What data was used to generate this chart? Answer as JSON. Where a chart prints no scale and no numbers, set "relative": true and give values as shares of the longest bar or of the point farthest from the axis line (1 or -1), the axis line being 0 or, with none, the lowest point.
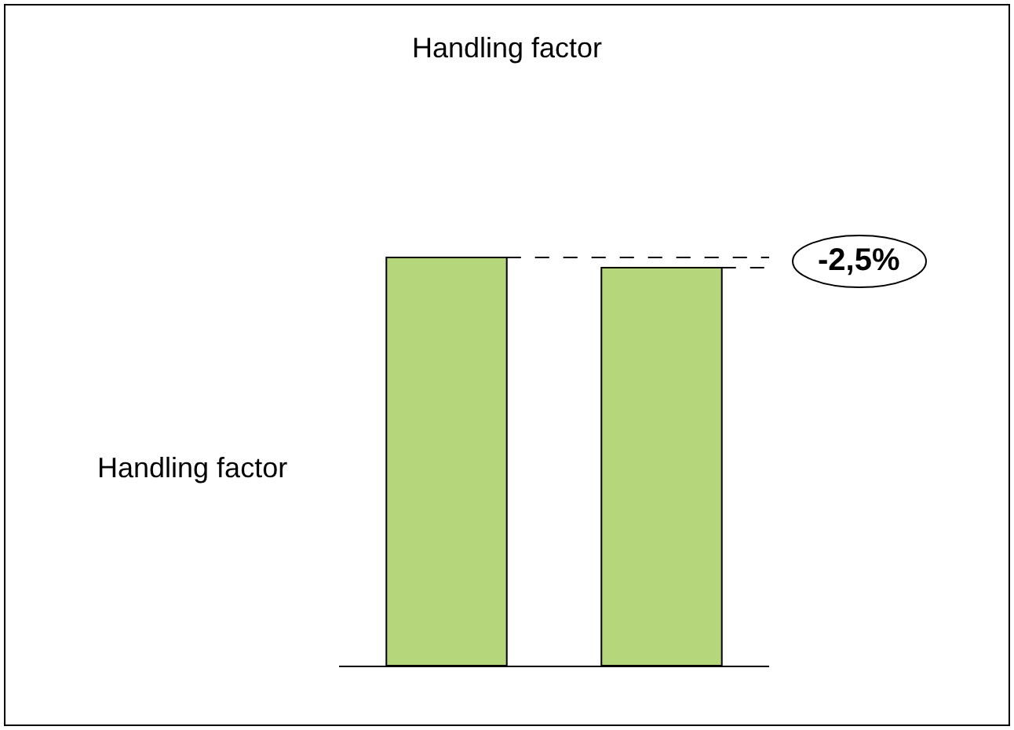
{
  "chart_data": {
    "type": "bar",
    "title": "Handling factor",
    "ylabel": "Handling factor",
    "relative": true,
    "categories": [
      null,
      null
    ],
    "values": [
      1,
      0.975
    ],
    "color": "#b5d67a",
    "annotations": [
      "-2,5%"
    ]
  }
}
